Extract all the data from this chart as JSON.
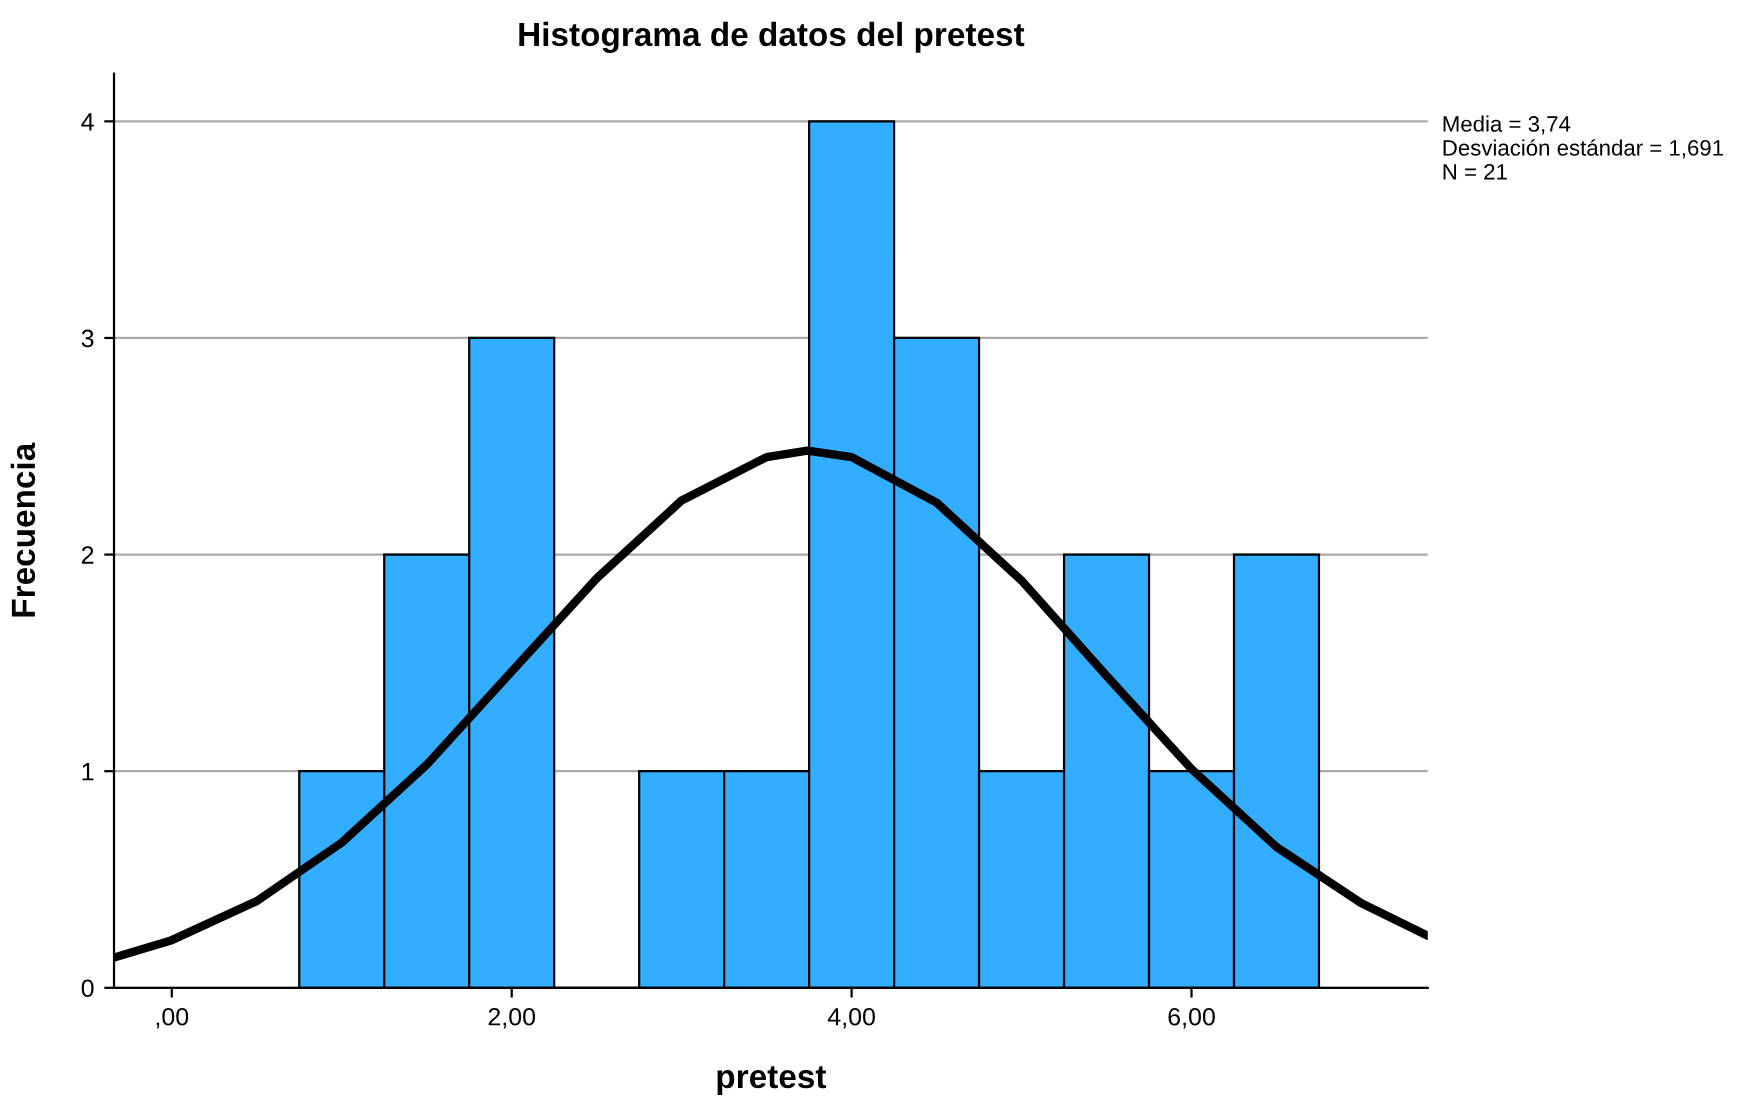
{
  "chart_data": {
    "type": "histogram",
    "title": "Histograma de datos del pretest",
    "xlabel": "pretest",
    "ylabel": "Frecuencia",
    "annotations": [
      "Media = 3,74\nDesviación estándar = 1,691\nN = 21"
    ],
    "series": [
      {
        "type": "histogram",
        "color": "#33adff",
        "bins": [
          0.75,
          1.25,
          1.75,
          2.25,
          2.75,
          3.25,
          3.75,
          4.25,
          4.75,
          5.25,
          5.75,
          6.25,
          6.75
        ],
        "values": [
          1,
          2,
          3,
          0,
          1,
          1,
          4,
          3,
          1,
          2,
          1,
          2
        ]
      },
      {
        "type": "line",
        "color": "#000000",
        "x": [
          -0.34,
          0,
          0.5,
          1.0,
          1.5,
          2.0,
          2.5,
          3.0,
          3.5,
          3.74,
          4.0,
          4.5,
          5.0,
          5.5,
          6.0,
          6.5,
          7.0,
          7.39
        ],
        "values": [
          0.14,
          0.22,
          0.4,
          0.67,
          1.03,
          1.46,
          1.89,
          2.25,
          2.45,
          2.48,
          2.45,
          2.24,
          1.88,
          1.44,
          1.01,
          0.65,
          0.39,
          0.24
        ]
      }
    ],
    "xlim": [
      -0.34,
      7.39
    ],
    "ylim": [
      0,
      4.22
    ],
    "xticks": [
      {
        "value": 0,
        "label": ",00"
      },
      {
        "value": 2,
        "label": "2,00"
      },
      {
        "value": 4,
        "label": "4,00"
      },
      {
        "value": 6,
        "label": "6,00"
      }
    ],
    "yticks": [
      0,
      1,
      2,
      3,
      4
    ],
    "grid": "y",
    "legend": false
  }
}
